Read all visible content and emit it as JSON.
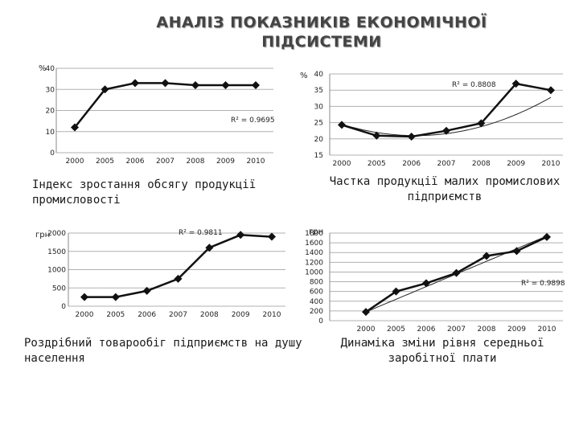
{
  "title": "АНАЛІЗ ПОКАЗНИКІВ ЕКОНОМІЧНОЇ ПІДСИСТЕМИ",
  "chart_data": [
    {
      "type": "line",
      "unit": "%",
      "categories": [
        "2000",
        "2005",
        "2006",
        "2007",
        "2008",
        "2009",
        "2010"
      ],
      "values": [
        12,
        30,
        33,
        33,
        32,
        32,
        32
      ],
      "ylim": [
        0,
        40
      ],
      "yticks": [
        "0",
        "10",
        "20",
        "30",
        "40"
      ],
      "r2": "R² = 0.9695",
      "caption": "Індекс зростання обсягу продукції промисловості",
      "trendline": false,
      "grid": true
    },
    {
      "type": "line",
      "unit": "%",
      "categories": [
        "2000",
        "2005",
        "2006",
        "2007",
        "2008",
        "2009",
        "2010"
      ],
      "values": [
        24.3,
        21,
        20.7,
        22.5,
        24.8,
        37,
        35
      ],
      "ylim": [
        15,
        40
      ],
      "yticks": [
        "15",
        "20",
        "25",
        "30",
        "35",
        "40"
      ],
      "r2": "R² = 0.8808",
      "caption": "Частка продукції малих промислових підприємств",
      "trendline": true,
      "trend_coefficients": [
        24.5,
        -3.3,
        0.78
      ],
      "grid": true
    },
    {
      "type": "line",
      "unit": "грн",
      "categories": [
        "2000",
        "2005",
        "2006",
        "2007",
        "2008",
        "2009",
        "2010"
      ],
      "values": [
        250,
        250,
        420,
        750,
        1600,
        1950,
        1900
      ],
      "ylim": [
        0,
        2000
      ],
      "yticks": [
        "0",
        "500",
        "1000",
        "1500",
        "2000"
      ],
      "r2": "R² = 0.9811",
      "caption": "Роздрібний товарообіг підприємств на душу населення",
      "trendline": false,
      "grid": true
    },
    {
      "type": "line",
      "unit": "грн",
      "categories": [
        "2000",
        "2005",
        "2006",
        "2007",
        "2008",
        "2009",
        "2010"
      ],
      "values": [
        180,
        600,
        770,
        980,
        1330,
        1430,
        1720
      ],
      "ylim": [
        0,
        1800
      ],
      "yticks": [
        "0",
        "200",
        "400",
        "600",
        "800",
        "1000",
        "1200",
        "1400",
        "1600",
        "1800"
      ],
      "r2": "R² = 0.9898",
      "caption": "Динаміка зміни рівня середньої заробітної плати",
      "trendline": true,
      "trend_coefficients": [
        180,
        260,
        0
      ],
      "grid": true
    }
  ]
}
